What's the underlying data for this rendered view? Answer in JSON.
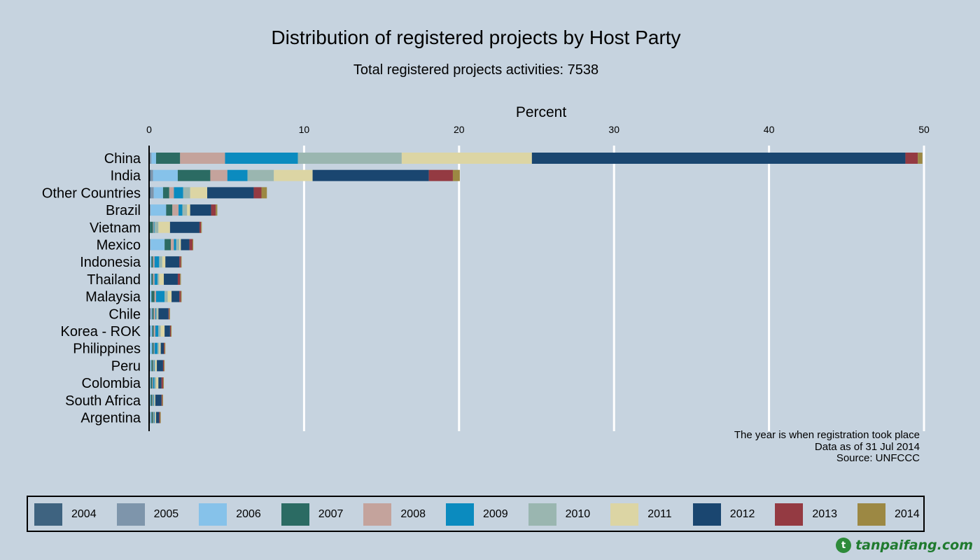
{
  "chart_data": {
    "type": "bar",
    "orientation": "horizontal",
    "stacked": true,
    "title": "Distribution of registered projects by Host Party",
    "subtitle": "Total registered projects activities: 7538",
    "xlabel": "Percent",
    "xlim": [
      0,
      50
    ],
    "xticks": [
      0,
      10,
      20,
      30,
      40,
      50
    ],
    "x_axis_position": "top",
    "grid": true,
    "legend_position": "bottom",
    "categories": [
      "China",
      "India",
      "Other Countries",
      "Brazil",
      "Vietnam",
      "Mexico",
      "Indonesia",
      "Thailand",
      "Malaysia",
      "Chile",
      "Korea - ROK",
      "Philippines",
      "Peru",
      "Colombia",
      "South Africa",
      "Argentina"
    ],
    "series": [
      {
        "name": "2004",
        "color": "#3e6380",
        "values": [
          0.05,
          0.1,
          0.1,
          0.05,
          0,
          0.05,
          0,
          0,
          0,
          0.05,
          0,
          0,
          0,
          0,
          0,
          0.05
        ]
      },
      {
        "name": "2005",
        "color": "#7e95ab",
        "values": [
          0.1,
          0.15,
          0.2,
          0.05,
          0,
          0.05,
          0.05,
          0.05,
          0.05,
          0.1,
          0.1,
          0.05,
          0.1,
          0.05,
          0.05,
          0.05
        ]
      },
      {
        "name": "2006",
        "color": "#86c2ea",
        "values": [
          0.3,
          1.6,
          0.6,
          1.0,
          0.05,
          0.9,
          0.1,
          0.1,
          0.1,
          0.05,
          0.1,
          0.15,
          0.05,
          0.05,
          0.05,
          0.05
        ]
      },
      {
        "name": "2007",
        "color": "#2b6b63",
        "values": [
          1.55,
          2.1,
          0.4,
          0.4,
          0.2,
          0.4,
          0.1,
          0.1,
          0.2,
          0.1,
          0.1,
          0.1,
          0.1,
          0.1,
          0.1,
          0.1
        ]
      },
      {
        "name": "2008",
        "color": "#c4a39c",
        "values": [
          2.9,
          1.1,
          0.3,
          0.4,
          0.05,
          0.2,
          0.1,
          0.1,
          0.1,
          0.1,
          0.1,
          0.05,
          0.05,
          0.05,
          0.05,
          0.05
        ]
      },
      {
        "name": "2009",
        "color": "#0b8bbf",
        "values": [
          4.7,
          1.3,
          0.6,
          0.25,
          0.05,
          0.15,
          0.3,
          0.2,
          0.55,
          0.05,
          0.2,
          0.2,
          0.05,
          0.1,
          0.05,
          0.05
        ]
      },
      {
        "name": "2010",
        "color": "#9ab6b0",
        "values": [
          6.7,
          1.7,
          0.45,
          0.3,
          0.25,
          0.2,
          0.2,
          0.1,
          0.2,
          0.1,
          0.15,
          0.1,
          0.05,
          0.1,
          0.05,
          0.05
        ]
      },
      {
        "name": "2011",
        "color": "#dcd5a4",
        "values": [
          8.4,
          2.5,
          1.1,
          0.2,
          0.75,
          0.1,
          0.2,
          0.3,
          0.25,
          0.05,
          0.25,
          0.1,
          0.1,
          0.15,
          0.05,
          0.05
        ]
      },
      {
        "name": "2012",
        "color": "#1a4670",
        "values": [
          24.1,
          7.5,
          3.0,
          1.35,
          1.9,
          0.55,
          0.9,
          0.9,
          0.5,
          0.65,
          0.35,
          0.2,
          0.4,
          0.2,
          0.4,
          0.2
        ]
      },
      {
        "name": "2013",
        "color": "#943a42",
        "values": [
          0.8,
          1.55,
          0.5,
          0.3,
          0.1,
          0.2,
          0.1,
          0.15,
          0.1,
          0.05,
          0.05,
          0.05,
          0.05,
          0.1,
          0.05,
          0.05
        ]
      },
      {
        "name": "2014",
        "color": "#9c8843",
        "values": [
          0.3,
          0.45,
          0.35,
          0.1,
          0.05,
          0.05,
          0.05,
          0.05,
          0.05,
          0.05,
          0.05,
          0.05,
          0.05,
          0.05,
          0.05,
          0.05
        ]
      }
    ],
    "notes": [
      "The year is when registration took place",
      "Data as of 31 Jul 2014",
      "Source: UNFCCC"
    ]
  },
  "watermark": {
    "logo_letter": "t",
    "text": "tanpaifang.com"
  }
}
